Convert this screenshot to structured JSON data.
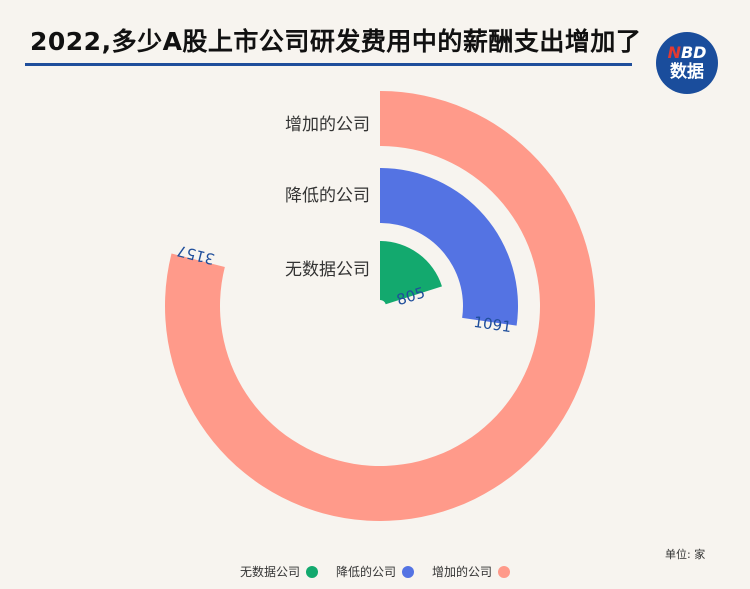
{
  "header": {
    "title": "2022,多少A股上市公司研发费用中的薪酬支出增加了",
    "logo_line1_red": "N",
    "logo_line1_rest": "BD",
    "logo_line2": "数据"
  },
  "unit_label": "单位: 家",
  "colors": {
    "increase": "#ff9a8a",
    "decrease": "#5473e3",
    "nodata": "#13a96e",
    "value_label": "#1f4e9b"
  },
  "chart_data": {
    "type": "radial-bar",
    "title": "2022,多少A股上市公司研发费用中的薪酬支出增加了",
    "unit": "单位: 家",
    "max": 4000,
    "categories": [
      "增加的公司",
      "降低的公司",
      "无数据公司"
    ],
    "values": [
      3157,
      1091,
      805
    ],
    "series": [
      {
        "name": "增加的公司",
        "value": 3157,
        "color": "#ff9a8a"
      },
      {
        "name": "降低的公司",
        "value": 1091,
        "color": "#5473e3"
      },
      {
        "name": "无数据公司",
        "value": 805,
        "color": "#13a96e"
      }
    ],
    "legend": [
      {
        "name": "无数据公司",
        "color": "#13a96e"
      },
      {
        "name": "降低的公司",
        "color": "#5473e3"
      },
      {
        "name": "增加的公司",
        "color": "#ff9a8a"
      }
    ],
    "legend_position": "bottom"
  }
}
